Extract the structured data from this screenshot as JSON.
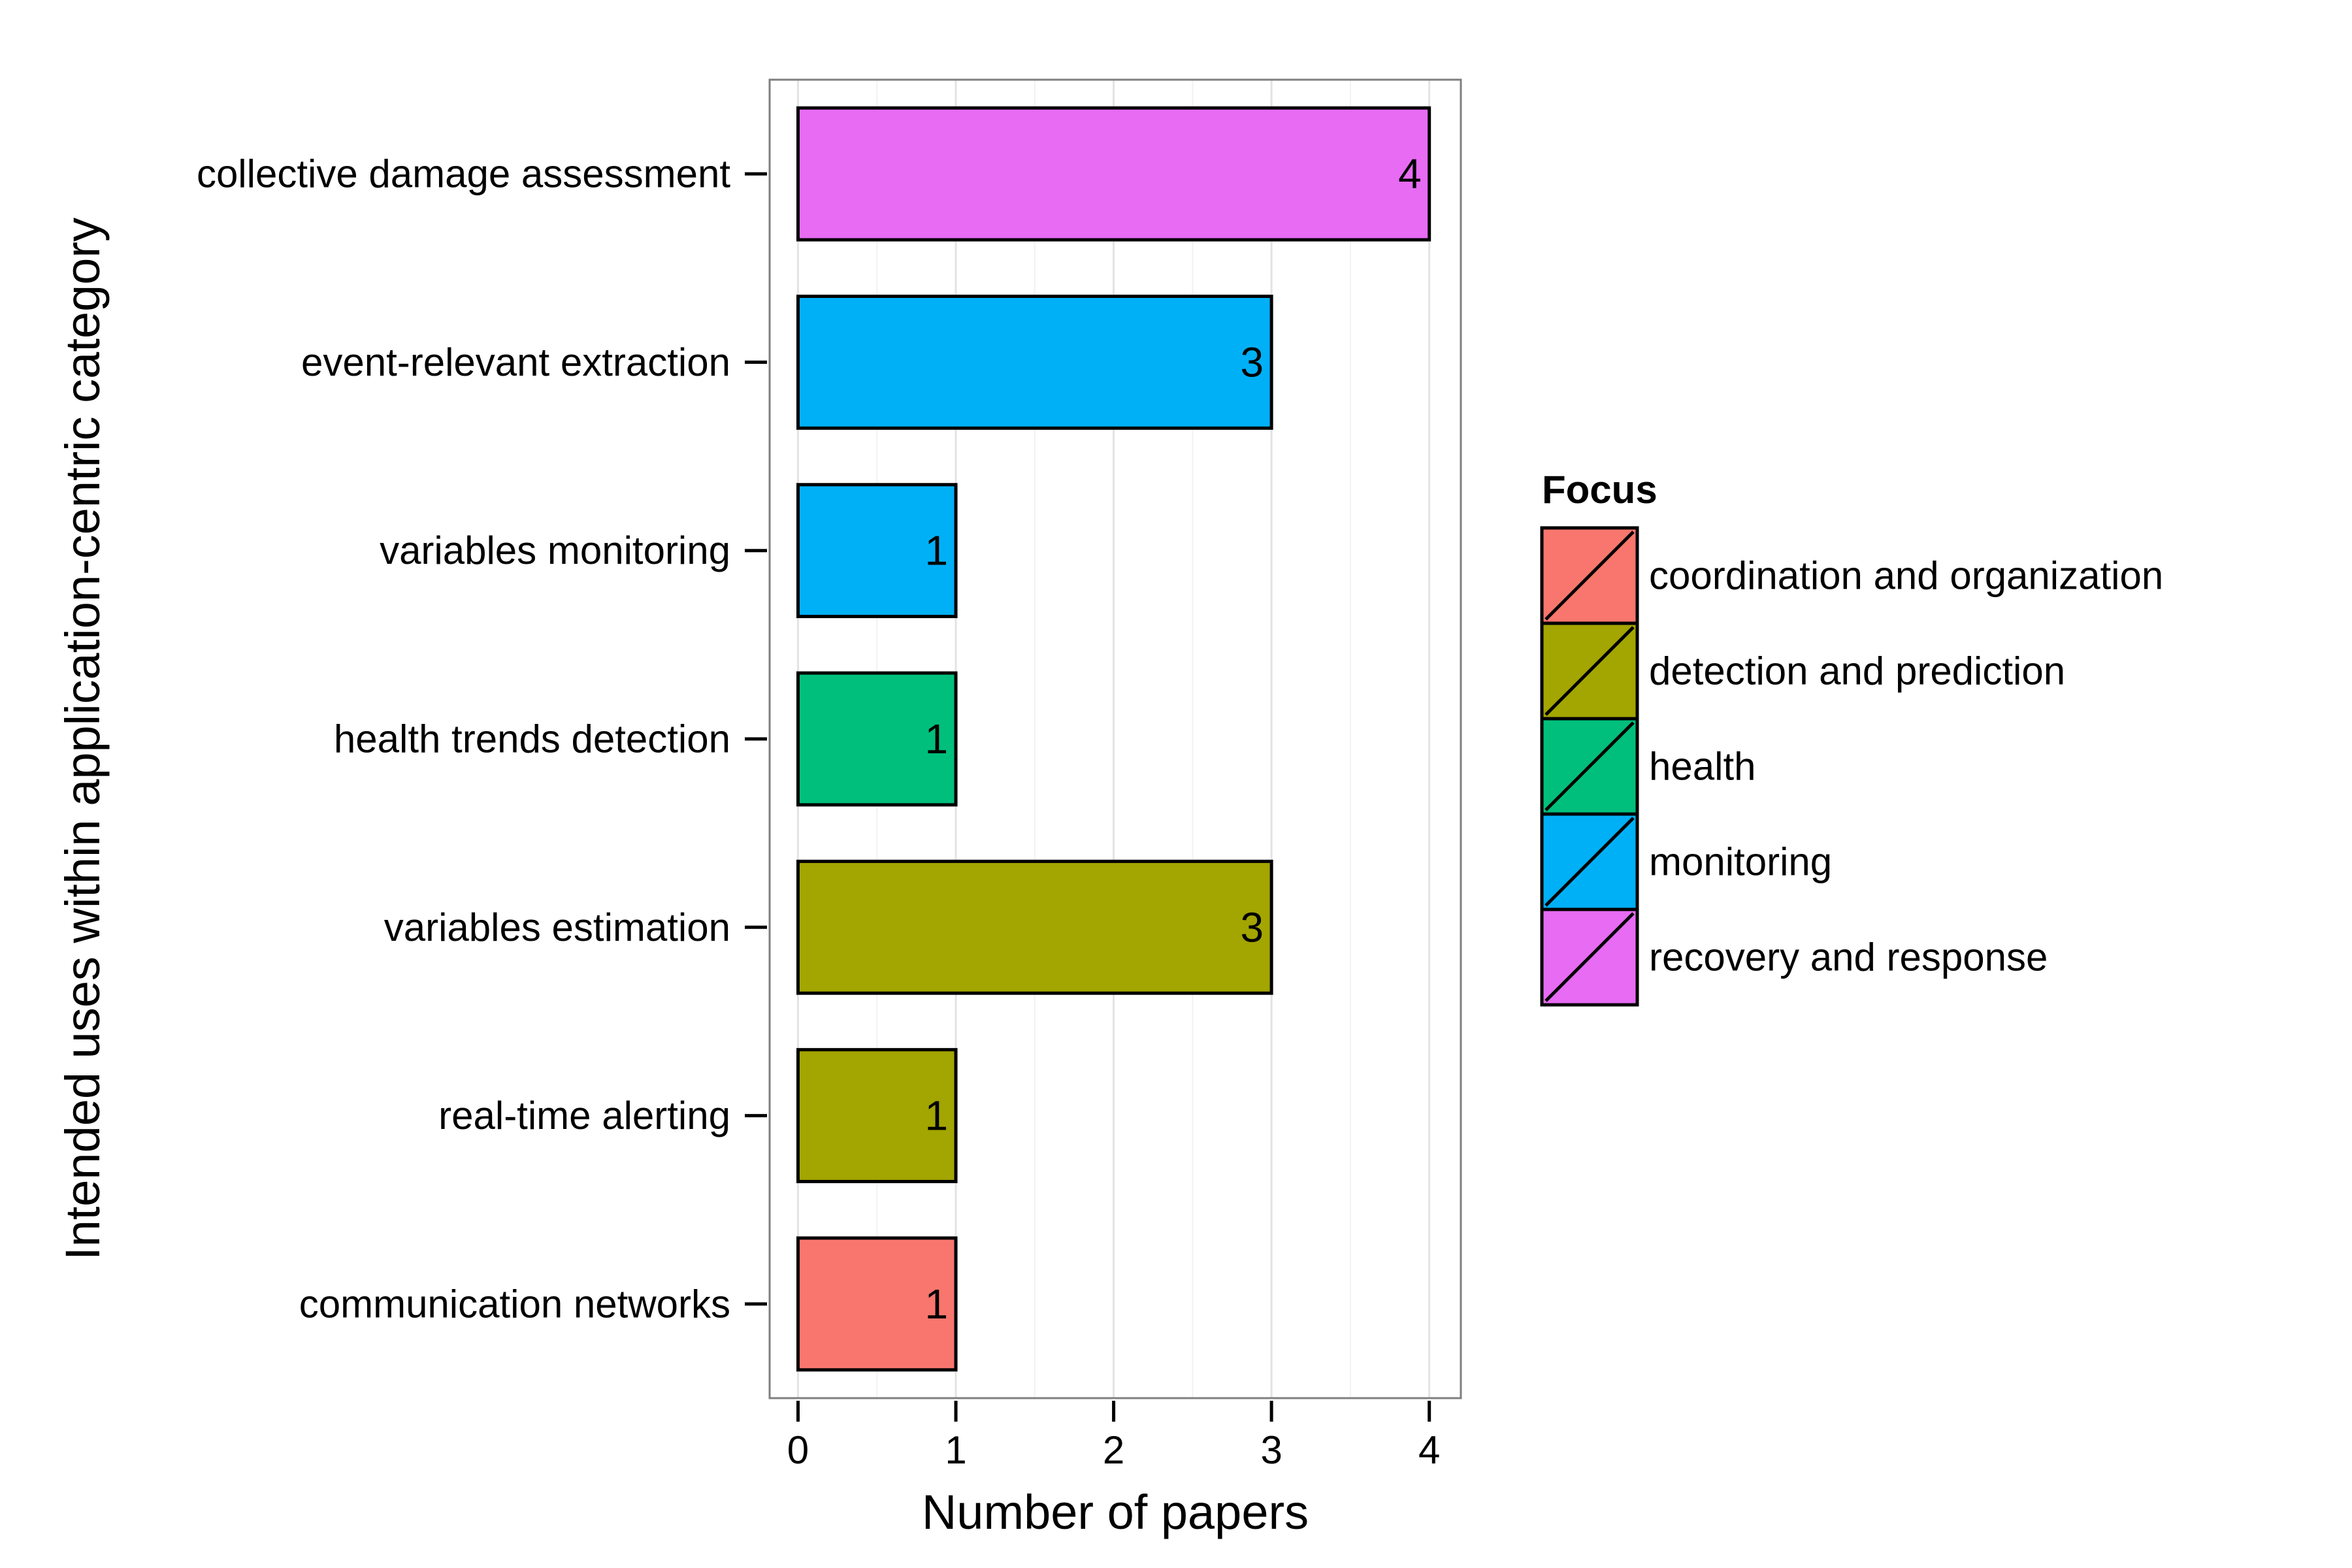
{
  "chart_data": {
    "type": "bar",
    "orientation": "horizontal",
    "categories": [
      "collective damage assessment",
      "event-relevant extraction",
      "variables monitoring",
      "health trends detection",
      "variables estimation",
      "real-time alerting",
      "communication networks"
    ],
    "values": [
      4,
      3,
      1,
      1,
      3,
      1,
      1
    ],
    "focus": [
      "recovery and response",
      "monitoring",
      "monitoring",
      "health",
      "detection and prediction",
      "detection and prediction",
      "coordination and organization"
    ],
    "data_labels": [
      "4",
      "3",
      "1",
      "1",
      "3",
      "1",
      "1"
    ],
    "xlabel": "Number of papers",
    "ylabel": "Intended uses within application-centric category",
    "xlim": [
      -0.18,
      4.2
    ],
    "x_ticks": [
      "0",
      "1",
      "2",
      "3",
      "4"
    ],
    "grid": true,
    "legend": {
      "title": "Focus",
      "position": "right",
      "entries": [
        {
          "label": "coordination and organization",
          "color": "#F8766D"
        },
        {
          "label": "detection and prediction",
          "color": "#A3A500"
        },
        {
          "label": "health",
          "color": "#00BF7D"
        },
        {
          "label": "monitoring",
          "color": "#00B0F6"
        },
        {
          "label": "recovery and response",
          "color": "#E76BF3"
        }
      ]
    }
  }
}
